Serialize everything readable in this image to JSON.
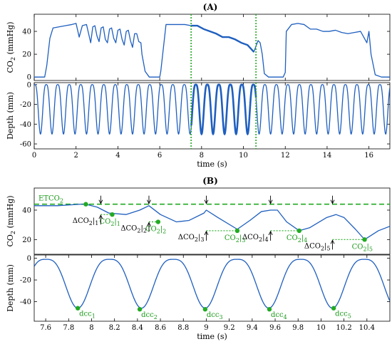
{
  "figure": {
    "panel_a_title": "(A)",
    "panel_b_title": "(B)"
  },
  "chart_data": [
    {
      "id": "A-co2",
      "type": "line",
      "title": "",
      "xlabel": "",
      "ylabel": "CO2 (mmHg)",
      "xlim": [
        0,
        17
      ],
      "ylim": [
        -3,
        55
      ],
      "xticks": [
        0,
        2,
        4,
        6,
        8,
        10,
        12,
        14,
        16
      ],
      "yticks": [
        0,
        20,
        40
      ],
      "series": [
        {
          "x": [
            0,
            0.5,
            0.6,
            0.75,
            0.9,
            1.2,
            1.5,
            1.8,
            2.0,
            2.15,
            2.3,
            2.5,
            2.6,
            2.7,
            2.8,
            2.9,
            3.0,
            3.1,
            3.2,
            3.3,
            3.4,
            3.5,
            3.6,
            3.7,
            3.8,
            3.9,
            4.0,
            4.1,
            4.2,
            4.3,
            4.4,
            4.5,
            4.6,
            4.7,
            4.8,
            4.9,
            5.0,
            5.1,
            5.15,
            5.3,
            5.5,
            5.9,
            6.0,
            6.05,
            6.3,
            6.6,
            6.9,
            7.2,
            7.5,
            7.8,
            8.1,
            8.4,
            8.7,
            9.0,
            9.3,
            9.6,
            9.9,
            10.2,
            10.5,
            10.7,
            10.8,
            10.9,
            11.0,
            11.2,
            11.5,
            11.9,
            12.0,
            12.05,
            12.3,
            12.6,
            12.9,
            13.2,
            13.5,
            13.8,
            14.1,
            14.4,
            14.7,
            15.0,
            15.3,
            15.6,
            15.9,
            16.0,
            16.1,
            16.3,
            16.6,
            17.0
          ],
          "y": [
            0,
            0,
            10,
            34,
            43,
            44,
            45,
            46,
            47,
            35,
            45,
            46,
            38,
            30,
            44,
            45,
            36,
            31,
            43,
            44,
            33,
            30,
            42,
            43,
            34,
            30,
            41,
            42,
            33,
            28,
            40,
            41,
            32,
            26,
            38,
            38,
            31,
            30,
            20,
            5,
            0,
            0,
            0,
            5,
            46,
            46,
            46,
            46,
            45,
            45,
            42,
            40,
            38,
            35,
            35,
            33,
            30,
            28,
            22,
            32,
            30,
            20,
            3,
            0,
            0,
            0,
            4,
            40,
            46,
            47,
            46,
            42,
            42,
            40,
            40,
            41,
            39,
            38,
            39,
            40,
            30,
            40,
            20,
            2,
            0,
            0
          ]
        }
      ],
      "vlines": [
        7.5,
        10.6
      ]
    },
    {
      "id": "A-depth",
      "type": "line",
      "title": "",
      "xlabel": "time (s)",
      "ylabel": "Depth (mm)",
      "xlim": [
        0,
        17
      ],
      "ylim": [
        -65,
        2
      ],
      "xticks": [
        0,
        2,
        4,
        6,
        8,
        10,
        12,
        14,
        16
      ],
      "xticklabels": [
        "0",
        "2",
        "4",
        "6",
        "8",
        "10",
        "12",
        "14",
        "16"
      ],
      "yticks": [
        0,
        -20,
        -40,
        -60
      ],
      "series": [
        {
          "cycle_period_s": 0.55,
          "first_trough_s": 0.3,
          "baseline": 0,
          "trough_depth": -50,
          "highlighted_range_s": [
            7.5,
            10.6
          ]
        }
      ],
      "vlines": [
        7.5,
        10.6
      ]
    },
    {
      "id": "B-co2",
      "type": "line",
      "title": "",
      "xlabel": "",
      "ylabel": "CO2 (mmHg)",
      "xlim": [
        7.5,
        10.6
      ],
      "ylim": [
        10,
        55
      ],
      "yticks": [
        20,
        40
      ],
      "etco2_level": 44,
      "etco2_label": "ETCO2",
      "series": [
        {
          "x": [
            7.5,
            7.7,
            7.9,
            7.95,
            8.05,
            8.15,
            8.3,
            8.42,
            8.5,
            8.6,
            8.74,
            8.85,
            8.98,
            9.0,
            9.1,
            9.27,
            9.38,
            9.48,
            9.56,
            9.62,
            9.7,
            9.81,
            9.9,
            10.05,
            10.13,
            10.2,
            10.3,
            10.38,
            10.5,
            10.6
          ],
          "y": [
            43,
            43,
            44,
            44,
            42,
            38,
            37,
            40,
            43,
            37,
            32,
            33,
            38,
            40,
            35,
            27,
            33,
            39,
            40,
            40,
            32,
            26,
            28,
            35,
            37,
            35,
            27,
            20,
            26,
            29
          ]
        }
      ],
      "markers": [
        {
          "x": 7.95,
          "y": 44,
          "label": ""
        },
        {
          "x": 8.18,
          "y": 37,
          "label": "CO2|1"
        },
        {
          "x": 8.58,
          "y": 32,
          "label": "CO2|2"
        },
        {
          "x": 9.27,
          "y": 26,
          "label": "CO2|3"
        },
        {
          "x": 9.81,
          "y": 26,
          "label": "CO2|4"
        },
        {
          "x": 10.38,
          "y": 20,
          "label": "CO2|5"
        }
      ],
      "delta_annotations": [
        {
          "x": 8.08,
          "label": "ΔCO2|1"
        },
        {
          "x": 8.5,
          "label": "ΔCO2|2"
        },
        {
          "x": 9.0,
          "label": "ΔCO2|3"
        },
        {
          "x": 9.56,
          "label": "ΔCO2|4"
        },
        {
          "x": 10.1,
          "label": "ΔCO2|5"
        }
      ]
    },
    {
      "id": "B-depth",
      "type": "line",
      "title": "",
      "xlabel": "time (s)",
      "ylabel": "Depth (mm)",
      "xlim": [
        7.5,
        10.6
      ],
      "ylim": [
        -58,
        3
      ],
      "xticks": [
        7.6,
        7.8,
        8,
        8.2,
        8.4,
        8.6,
        8.8,
        9,
        9.2,
        9.4,
        9.6,
        9.8,
        10,
        10.2,
        10.4
      ],
      "xticklabels": [
        "7.6",
        "7.8",
        "8",
        "8.2",
        "8.4",
        "8.6",
        "8.8",
        "9",
        "9.2",
        "9.4",
        "9.6",
        "9.8",
        "10",
        "10.2",
        "10.4"
      ],
      "yticks": [
        0,
        -20,
        -40
      ],
      "series": [
        {
          "cycle_period_s": 0.555,
          "first_trough_s": 7.88,
          "baseline": -1,
          "trough_depth": -46
        }
      ],
      "markers": [
        {
          "x": 7.88,
          "y": -46,
          "label": "dcc1"
        },
        {
          "x": 8.42,
          "y": -47,
          "label": "dcc2"
        },
        {
          "x": 8.99,
          "y": -47,
          "label": "dcc3"
        },
        {
          "x": 9.55,
          "y": -47,
          "label": "dcc4"
        },
        {
          "x": 10.11,
          "y": -46,
          "label": "dcc5"
        }
      ]
    }
  ],
  "colors": {
    "line": "#1f5fbf",
    "marker": "#22aa22",
    "guide": "#22aa22",
    "axis": "#000000"
  }
}
